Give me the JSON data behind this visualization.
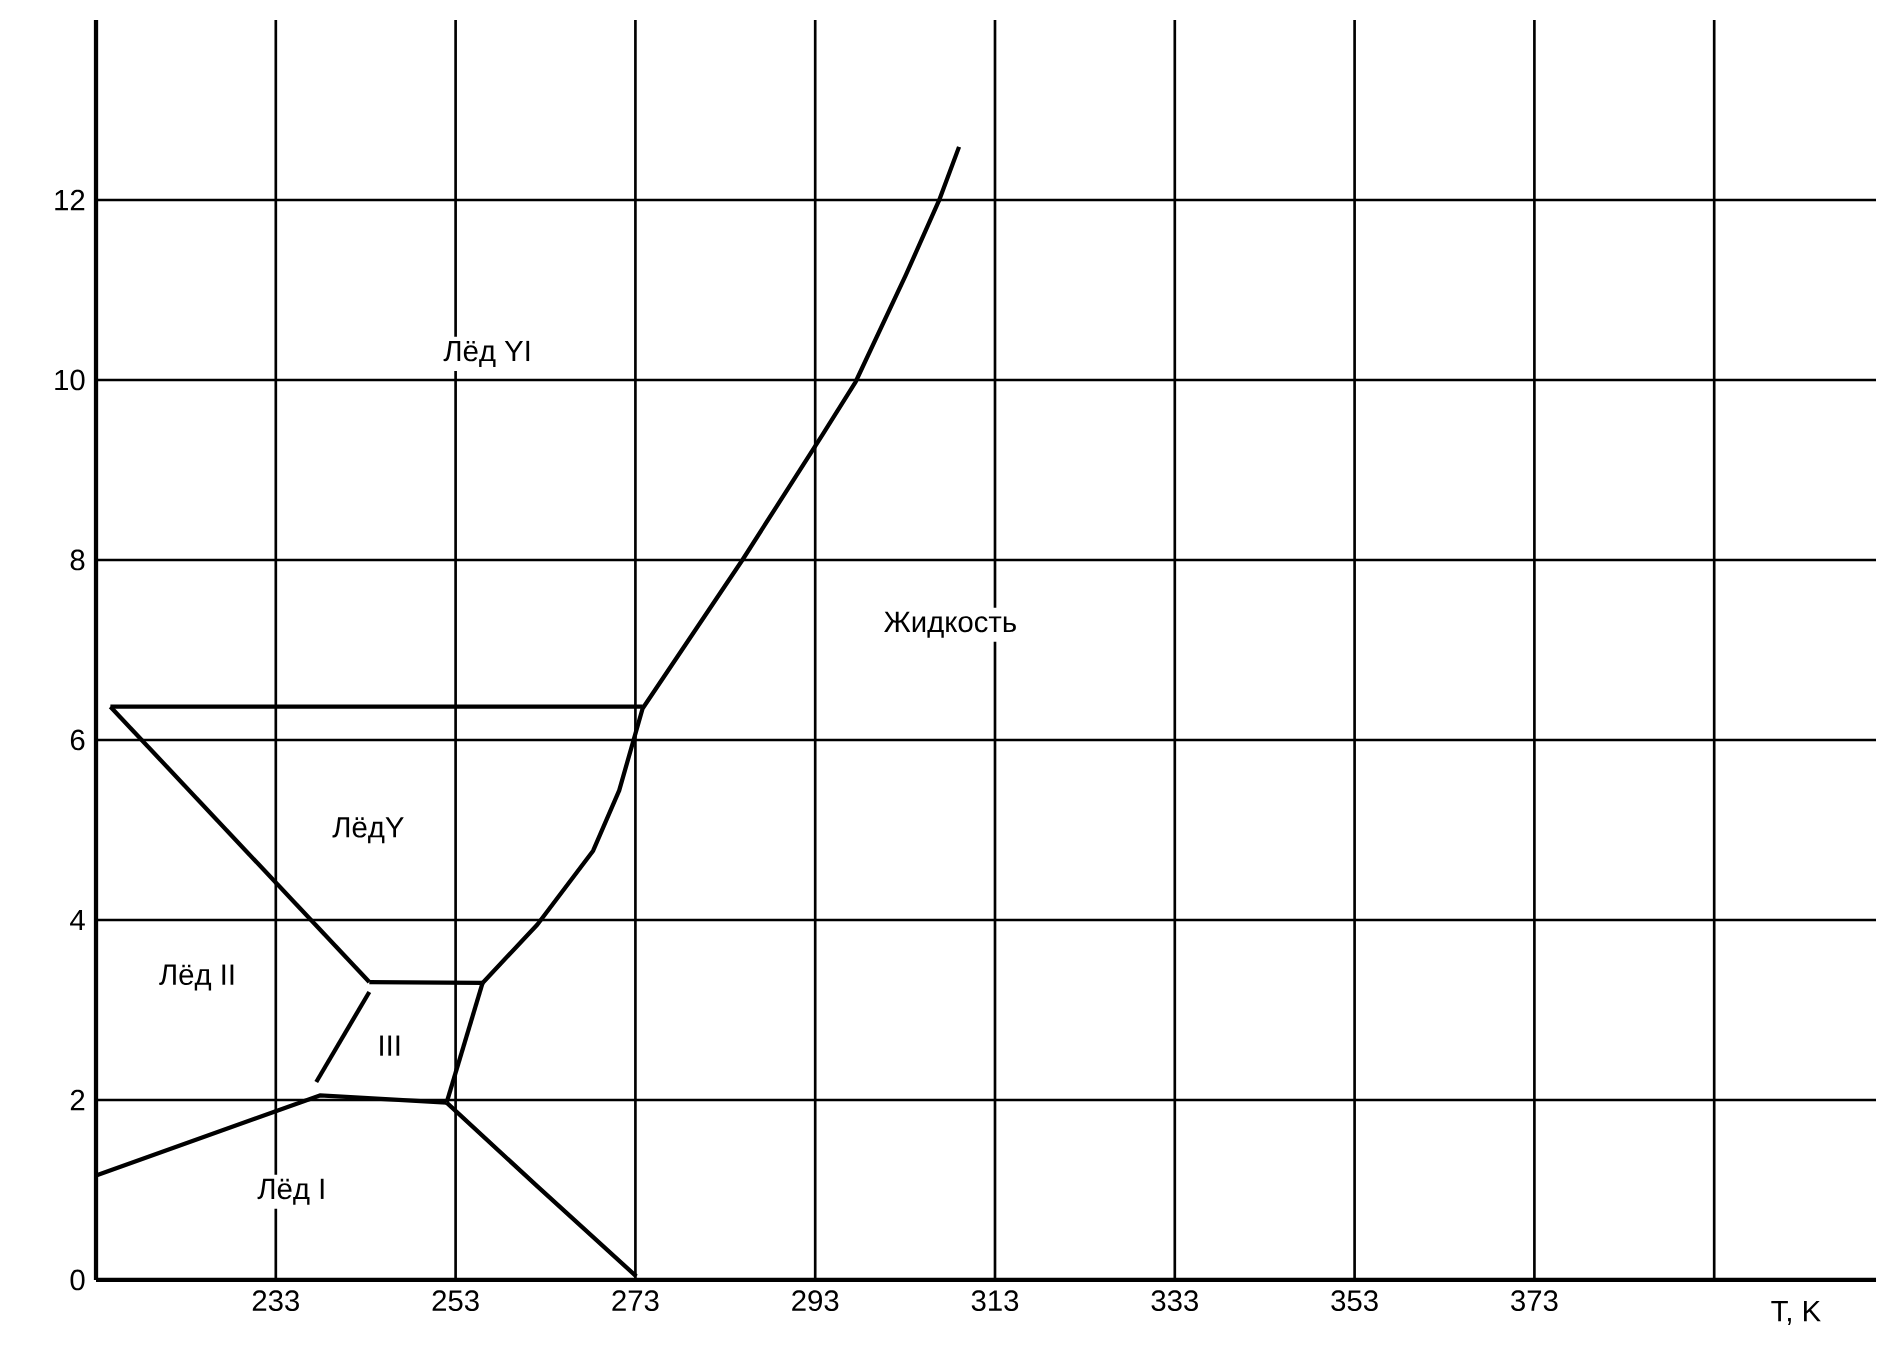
{
  "chart_data": {
    "type": "line",
    "xlabel": "T, K",
    "xlim": [
      213,
      411
    ],
    "ylim": [
      0,
      14
    ],
    "xticks": [
      233,
      253,
      273,
      293,
      313,
      333,
      353,
      373,
      {
        "value": 393,
        "label": null
      }
    ],
    "yticks": [
      0,
      2,
      4,
      6,
      8,
      10,
      12
    ],
    "grid": true,
    "marker": "none",
    "line_style": "solid",
    "series": [
      {
        "color": "#000000",
        "x": [
          213,
          237.9,
          252.0
        ],
        "values": [
          1.16,
          2.05,
          1.97
        ]
      },
      {
        "color": "#000000",
        "x": [
          252.0,
          262.1,
          273.1
        ],
        "values": [
          1.97,
          1.04,
          0.04
        ]
      },
      {
        "color": "#000000",
        "x": [
          237.5,
          243.4
        ],
        "values": [
          2.2,
          3.2
        ]
      },
      {
        "color": "#000000",
        "x": [
          243.4,
          256.0
        ],
        "values": [
          3.31,
          3.3
        ]
      },
      {
        "color": "#000000",
        "x": [
          256.0,
          252.0
        ],
        "values": [
          3.3,
          1.97
        ]
      },
      {
        "color": "#000000",
        "x": [
          214.6,
          243.4
        ],
        "values": [
          6.37,
          3.31
        ]
      },
      {
        "color": "#000000",
        "x": [
          214.6,
          273.8
        ],
        "values": [
          6.37,
          6.37
        ]
      },
      {
        "color": "#000000",
        "x": [
          256.0,
          262.1,
          268.3,
          271.2,
          273.8,
          284.9,
          293.8,
          297.5,
          303.1,
          306.8,
          309.0
        ],
        "values": [
          3.3,
          3.95,
          4.77,
          5.44,
          6.35,
          8.0,
          9.39,
          9.98,
          11.17,
          12.0,
          12.59
        ]
      }
    ],
    "annotations": [
      "Лёд YI",
      "Жидкость",
      "ЛёдY",
      "Лёд II",
      "III",
      "Лёд I"
    ]
  }
}
